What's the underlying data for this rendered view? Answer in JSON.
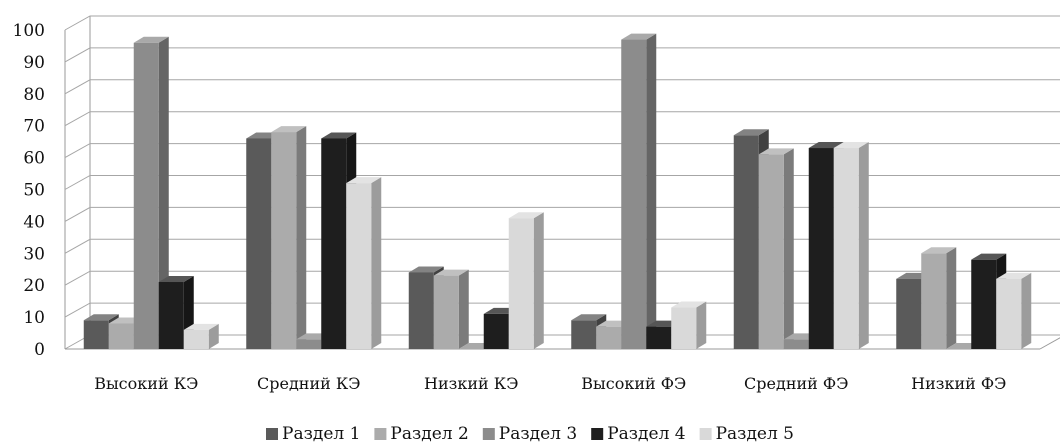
{
  "chart_data": {
    "type": "bar",
    "categories": [
      "Высокий КЭ",
      "Средний КЭ",
      "Низкий КЭ",
      "Высокий ФЭ",
      "Средний ФЭ",
      "Низкий ФЭ"
    ],
    "series": [
      {
        "name": "Раздел 1",
        "color": "#5a5a5a",
        "values": [
          9,
          66,
          24,
          9,
          67,
          22
        ]
      },
      {
        "name": "Раздел 2",
        "color": "#ababab",
        "values": [
          8,
          68,
          23,
          7,
          61,
          30
        ]
      },
      {
        "name": "Раздел 3",
        "color": "#8c8c8c",
        "values": [
          96,
          3,
          0,
          97,
          3,
          0
        ]
      },
      {
        "name": "Раздел 4",
        "color": "#1e1e1e",
        "values": [
          21,
          66,
          11,
          7,
          63,
          28
        ]
      },
      {
        "name": "Раздел 5",
        "color": "#d9d9d9",
        "values": [
          6,
          52,
          41,
          13,
          63,
          22
        ]
      }
    ],
    "ylim": [
      0,
      100
    ],
    "yticks": [
      "0",
      "10",
      "20",
      "30",
      "40",
      "50",
      "60",
      "70",
      "80",
      "90",
      "100"
    ],
    "grid": true,
    "legend_position": "bottom",
    "style": "3d-clustered-columns"
  }
}
